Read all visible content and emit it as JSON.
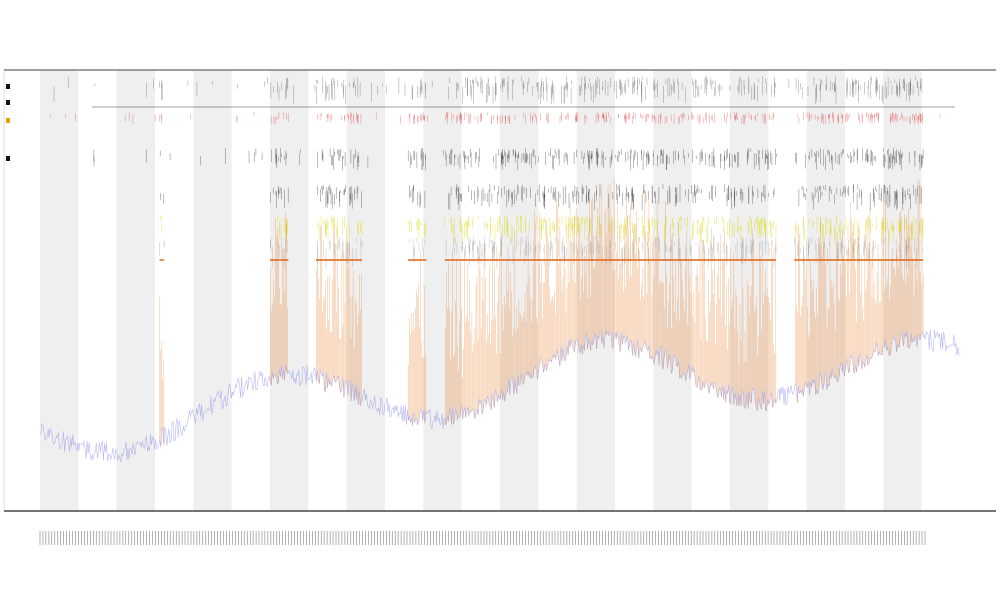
{
  "chart_data": {
    "type": "line",
    "title": "",
    "subtitle_lines": [
      "",
      ""
    ],
    "xlabel": "",
    "ylabel": "",
    "grid": false,
    "band_style": "alternating vertical bands",
    "legend_placement": "left",
    "legend_entries": [
      {
        "name": "",
        "color": "#111111"
      },
      {
        "name": "",
        "color": "#111111"
      },
      {
        "name": "",
        "color": "#e9a200"
      },
      {
        "name": "",
        "color": "#111111"
      }
    ],
    "x_tick_count": 300,
    "band_count": 24,
    "series": [
      {
        "name": "",
        "role": "baseline-signal",
        "color": "#7b7fe8"
      },
      {
        "name": "",
        "role": "active-signal",
        "color": "#e8781e"
      }
    ],
    "event_tracks": [
      {
        "name": "",
        "color": "#555555",
        "style": "ticks"
      },
      {
        "name": "",
        "color": "#e04040",
        "style": "ticks"
      },
      {
        "name": "",
        "color": "#222222",
        "style": "ticks"
      },
      {
        "name": "",
        "color": "#222222",
        "style": "ticks"
      },
      {
        "name": "",
        "color": "#d8d800",
        "style": "ticks"
      },
      {
        "name": "",
        "color": "#999999",
        "style": "ticks"
      },
      {
        "name": "",
        "color": "#e06010",
        "style": "segments"
      }
    ],
    "active_intervals_fraction": [
      [
        0.13,
        0.135
      ],
      [
        0.25,
        0.27
      ],
      [
        0.3,
        0.35
      ],
      [
        0.4,
        0.42
      ],
      [
        0.44,
        0.8
      ],
      [
        0.82,
        0.96
      ]
    ]
  }
}
